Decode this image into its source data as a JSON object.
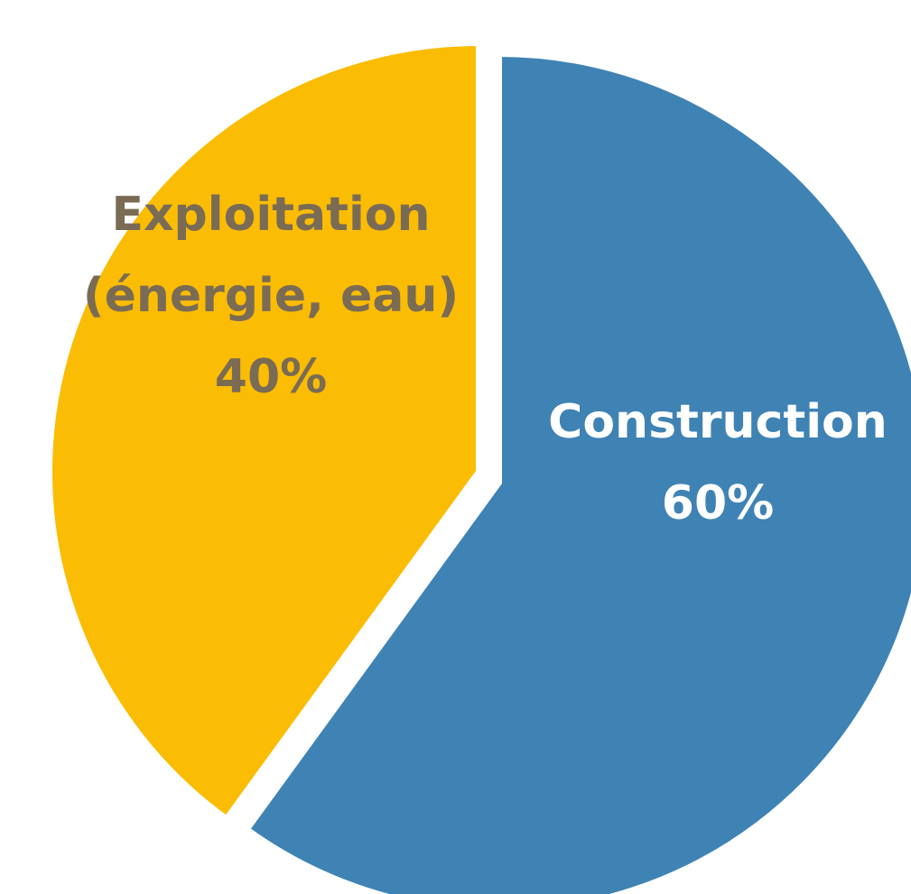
{
  "chart_data": {
    "type": "pie",
    "title": "",
    "slices": [
      {
        "label_lines": [
          "Construction",
          "60%"
        ],
        "value": 60,
        "color": "#3F83B4",
        "label_color": "#FFFFFF"
      },
      {
        "label_lines": [
          "Exploitation",
          "(énergie, eau)",
          "40%"
        ],
        "value": 40,
        "color": "#FBBC04",
        "label_color": "#7A6B55"
      }
    ],
    "start_angle_deg": 0,
    "direction": "clockwise",
    "exploded_slice_index": 1
  }
}
